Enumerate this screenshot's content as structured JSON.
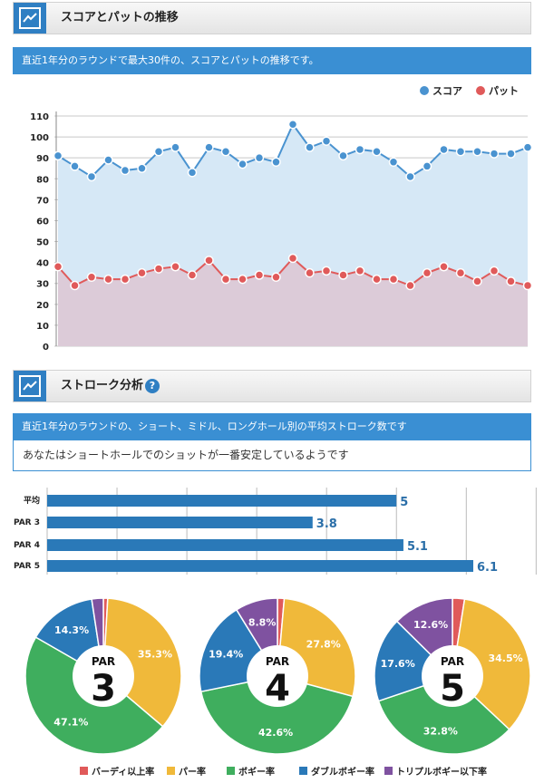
{
  "section1": {
    "title": "スコアとパットの推移",
    "info": "直近1年分のラウンドで最大30件の、スコアとパットの推移です。"
  },
  "section2": {
    "title": "ストローク分析",
    "help_label": "?",
    "info": "直近1年分のラウンドの、ショート、ミドル、ロングホール別の平均ストローク数です",
    "message": "あなたはショートホールでのショットが一番安定しているようです"
  },
  "colors": {
    "score": "#4a93d0",
    "putt": "#e05a5a",
    "bar": "#2a79b8",
    "birdie": "#e05a5a",
    "par": "#f0b93a",
    "bogey": "#3fae5e",
    "double": "#2a79b8",
    "triple": "#7f52a0"
  },
  "chart_data": [
    {
      "type": "line",
      "legend": [
        "スコア",
        "パット"
      ],
      "legend_position": "top-right",
      "ylim": [
        0,
        110
      ],
      "yticks": [
        0,
        10,
        20,
        30,
        40,
        50,
        60,
        70,
        80,
        90,
        100,
        110
      ],
      "grid": true,
      "series": [
        {
          "name": "スコア",
          "values": [
            91,
            86,
            81,
            89,
            84,
            85,
            93,
            95,
            83,
            95,
            93,
            87,
            90,
            88,
            106,
            95,
            98,
            91,
            94,
            93,
            88,
            81,
            86,
            94,
            93,
            93,
            92,
            92,
            95
          ]
        },
        {
          "name": "パット",
          "values": [
            38,
            29,
            33,
            32,
            32,
            35,
            37,
            38,
            34,
            41,
            32,
            32,
            34,
            33,
            42,
            35,
            36,
            34,
            36,
            32,
            32,
            29,
            35,
            38,
            35,
            31,
            36,
            31,
            29
          ]
        }
      ]
    },
    {
      "type": "bar",
      "orientation": "horizontal",
      "categories": [
        "平均",
        "PAR 3",
        "PAR 4",
        "PAR 5"
      ],
      "values": [
        5,
        3.8,
        5.1,
        6.1
      ],
      "labels": [
        "5",
        "3.8",
        "5.1",
        "6.1"
      ],
      "xlim": [
        0,
        7
      ],
      "grid": true
    },
    {
      "type": "pie",
      "center_prefix": "PAR",
      "categories": [
        "バーディ以上率",
        "パー率",
        "ボギー率",
        "ダブルボギー率",
        "トリプルボギー以下率"
      ],
      "legend_position": "bottom",
      "pies": [
        {
          "par": "3",
          "values": [
            0.9,
            35.3,
            47.1,
            14.3,
            2.4
          ],
          "labels": [
            "",
            "35.3%",
            "47.1%",
            "14.3%",
            ""
          ]
        },
        {
          "par": "4",
          "values": [
            1.4,
            27.8,
            42.6,
            19.4,
            8.8
          ],
          "labels": [
            "",
            "27.8%",
            "42.6%",
            "19.4%",
            "8.8%"
          ]
        },
        {
          "par": "5",
          "values": [
            2.5,
            34.5,
            32.8,
            17.6,
            12.6
          ],
          "labels": [
            "",
            "34.5%",
            "32.8%",
            "17.6%",
            "12.6%"
          ]
        }
      ]
    }
  ]
}
